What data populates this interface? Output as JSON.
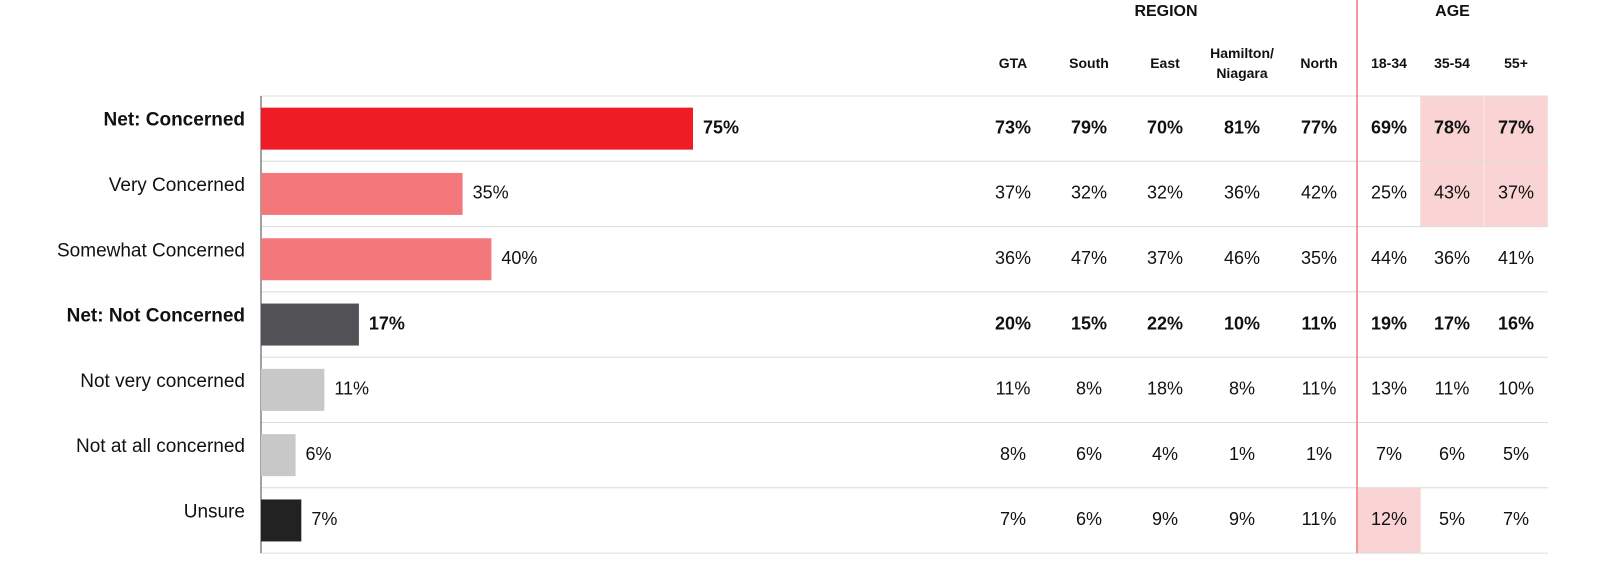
{
  "chart_data": {
    "type": "bar",
    "orientation": "horizontal",
    "categories": [
      "Net: Concerned",
      "Very Concerned",
      "Somewhat Concerned",
      "Net: Not Concerned",
      "Not very concerned",
      "Not at all concerned",
      "Unsure"
    ],
    "values": [
      75,
      35,
      40,
      17,
      11,
      6,
      7
    ],
    "value_labels": [
      "75%",
      "35%",
      "40%",
      "17%",
      "11%",
      "6%",
      "7%"
    ],
    "colors": [
      "#ee1c25",
      "#f4777b",
      "#f4777b",
      "#525156",
      "#c8c8c8",
      "#c8c8c8",
      "#222222"
    ],
    "xlim": [
      0,
      100
    ]
  },
  "bold_rows": [
    0,
    3
  ],
  "table": {
    "groups": [
      {
        "label": "REGION",
        "columns": [
          "GTA",
          "South",
          "East",
          "Hamilton/\nNiagara",
          "North"
        ]
      },
      {
        "label": "AGE",
        "columns": [
          "18-34",
          "35-54",
          "55+"
        ]
      }
    ],
    "rows": [
      [
        "73%",
        "79%",
        "70%",
        "81%",
        "77%",
        "69%",
        "78%",
        "77%"
      ],
      [
        "37%",
        "32%",
        "32%",
        "36%",
        "42%",
        "25%",
        "43%",
        "37%"
      ],
      [
        "36%",
        "47%",
        "37%",
        "46%",
        "35%",
        "44%",
        "36%",
        "41%"
      ],
      [
        "20%",
        "15%",
        "22%",
        "10%",
        "11%",
        "19%",
        "17%",
        "16%"
      ],
      [
        "11%",
        "8%",
        "18%",
        "8%",
        "11%",
        "13%",
        "11%",
        "10%"
      ],
      [
        "8%",
        "6%",
        "4%",
        "1%",
        "1%",
        "7%",
        "6%",
        "5%"
      ],
      [
        "7%",
        "6%",
        "9%",
        "9%",
        "11%",
        "12%",
        "5%",
        "7%"
      ]
    ],
    "highlighted": [
      [
        0,
        6
      ],
      [
        0,
        7
      ],
      [
        1,
        6
      ],
      [
        1,
        7
      ],
      [
        6,
        5
      ]
    ],
    "highlight_color": "#fad4d4",
    "divider_color": "#f4777b"
  }
}
